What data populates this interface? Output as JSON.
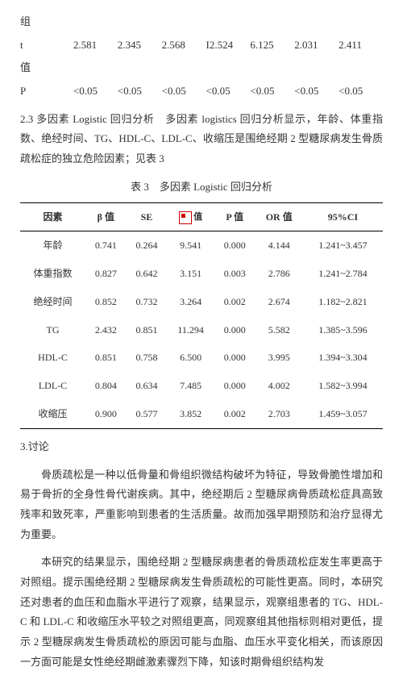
{
  "pre": {
    "line0": "组",
    "t_label": "t",
    "t_vals": [
      "2.581",
      "2.345",
      "2.568",
      "I2.524",
      "6.125",
      "2.031",
      "2.411"
    ],
    "mid_label": "值",
    "p_label": "P",
    "p_vals": [
      "<0.05",
      "<0.05",
      "<0.05",
      "<0.05",
      "<0.05",
      "<0.05",
      "<0.05"
    ]
  },
  "section23": "2.3 多因素 Logistic 回归分析　多因素 logistics 回归分析显示，年龄、体重指数、绝经时间、TG、HDL-C、LDL-C、收缩压是围绝经期 2 型糖尿病发生骨质疏松症的独立危险因素；见表 3",
  "table3": {
    "caption": "表 3　多因素 Logistic 回归分析",
    "headers": [
      "因素",
      "β 值",
      "SE",
      "值",
      "P 值",
      "OR 值",
      "95%CI"
    ],
    "rows": [
      [
        "年龄",
        "0.741",
        "0.264",
        "9.541",
        "0.000",
        "4.144",
        "1.241~3.457"
      ],
      [
        "体重指数",
        "0.827",
        "0.642",
        "3.151",
        "0.003",
        "2.786",
        "1.241~2.784"
      ],
      [
        "绝经时间",
        "0.852",
        "0.732",
        "3.264",
        "0.002",
        "2.674",
        "1.182~2.821"
      ],
      [
        "TG",
        "2.432",
        "0.851",
        "11.294",
        "0.000",
        "5.582",
        "1.385~3.596"
      ],
      [
        "HDL-C",
        "0.851",
        "0.758",
        "6.500",
        "0.000",
        "3.995",
        "1.394~3.304"
      ],
      [
        "LDL-C",
        "0.804",
        "0.634",
        "7.485",
        "0.000",
        "4.002",
        "1.582~3.994"
      ],
      [
        "收缩压",
        "0.900",
        "0.577",
        "3.852",
        "0.002",
        "2.703",
        "1.459~3.057"
      ]
    ]
  },
  "discussion": {
    "heading": "3.讨论",
    "p1": "骨质疏松是一种以低骨量和骨组织微结构破坏为特征，导致骨脆性增加和易于骨折的全身性骨代谢疾病。其中，绝经期后 2 型糖尿病骨质疏松症具高致残率和致死率，严重影响到患者的生活质量。故而加强早期预防和治疗显得尤为重要。",
    "p2": "本研究的结果显示，围绝经期 2 型糖尿病患者的骨质疏松症发生率更高于对照组。提示围绝经期 2 型糖尿病发生骨质疏松的可能性更高。同时，本研究还对患者的血压和血脂水平进行了观察，结果显示，观察组患者的 TG、HDL-C 和 LDL-C 和收缩压水平较之对照组更高，同观察组其他指标则相对更低，提示 2 型糖尿病发生骨质疏松的原因可能与血脂、血压水平变化相关，而该原因一方面可能是女性绝经期雌激素骤烈下降，知该时期骨组织结构发"
  }
}
